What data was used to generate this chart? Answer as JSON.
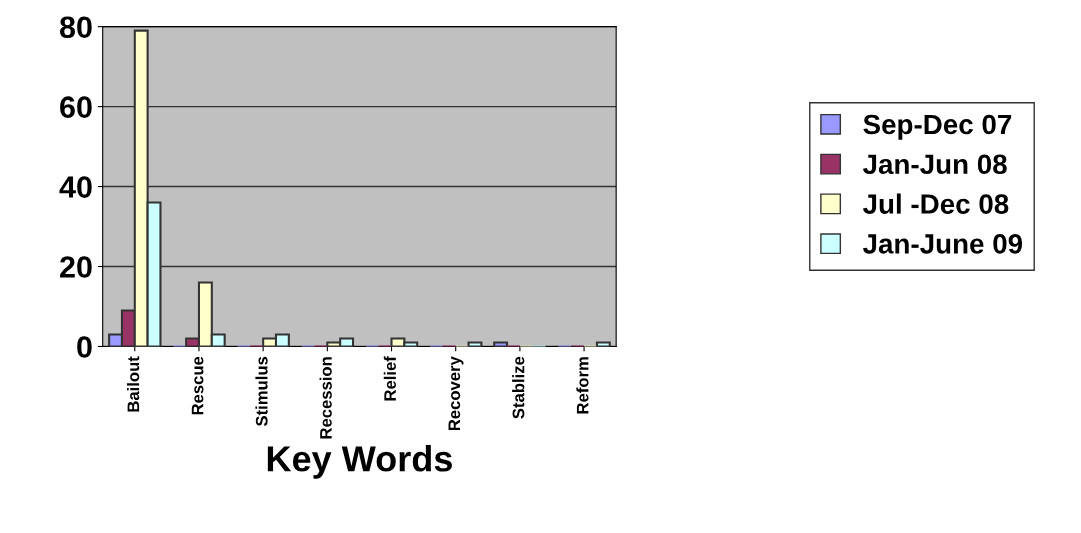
{
  "chart_data": {
    "type": "bar",
    "xlabel": "Key Words",
    "categories": [
      "Bailout",
      "Rescue",
      "Stimulus",
      "Recession",
      "Relief",
      "Recovery",
      "Stablize",
      "Reform"
    ],
    "series": [
      {
        "name": "Sep-Dec 07",
        "color": "#9999ff",
        "values": [
          3,
          0,
          0,
          0,
          0,
          0,
          1,
          0
        ]
      },
      {
        "name": "Jan-Jun 08",
        "color": "#993366",
        "values": [
          9,
          2,
          0,
          0,
          0,
          0,
          0,
          0
        ]
      },
      {
        "name": "Jul -Dec 08",
        "color": "#ffffcc",
        "values": [
          79,
          16,
          2,
          1,
          2,
          0,
          0,
          0
        ]
      },
      {
        "name": "Jan-June 09",
        "color": "#ccffff",
        "values": [
          36,
          3,
          3,
          2,
          1,
          1,
          0,
          1
        ]
      }
    ],
    "ylim": [
      0,
      80
    ],
    "yticks": [
      0,
      20,
      40,
      60,
      80
    ],
    "grid": "y",
    "legend": "right"
  }
}
